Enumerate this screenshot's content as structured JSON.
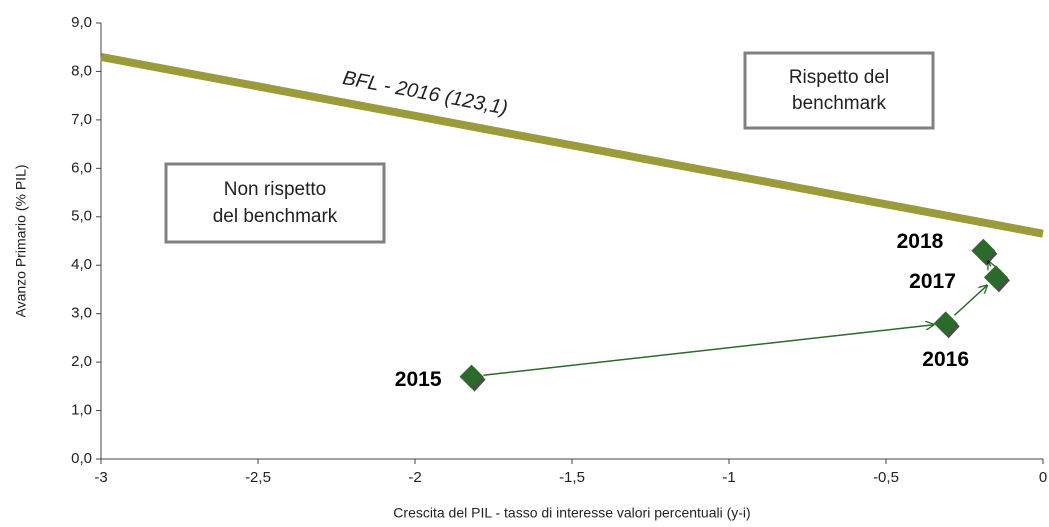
{
  "chart_data": {
    "type": "scatter",
    "xlabel": "Crescita del PIL - tasso di interesse valori percentuali (y-i)",
    "ylabel": "Avanzo Primario (% PIL)",
    "xlim": [
      -3,
      0
    ],
    "ylim": [
      0,
      9
    ],
    "xticks": [
      -3,
      {
        "value": -2.5,
        "label": "-2,5"
      },
      -2,
      {
        "value": -1.5,
        "label": "-1,5"
      },
      -1,
      {
        "value": -0.5,
        "label": "-0,5"
      },
      0
    ],
    "yticks": [
      {
        "value": 0,
        "label": "0,0"
      },
      {
        "value": 1,
        "label": "1,0"
      },
      {
        "value": 2,
        "label": "2,0"
      },
      {
        "value": 3,
        "label": "3,0"
      },
      {
        "value": 4,
        "label": "4,0"
      },
      {
        "value": 5,
        "label": "5,0"
      },
      {
        "value": 6,
        "label": "6,0"
      },
      {
        "value": 7,
        "label": "7,0"
      },
      {
        "value": 8,
        "label": "8,0"
      },
      {
        "value": 9,
        "label": "9,0"
      }
    ],
    "line": {
      "x": [
        -3,
        0
      ],
      "y": [
        8.3,
        4.65
      ],
      "color": "#9b9b3c"
    },
    "points": {
      "x": [
        -1.82,
        -0.31,
        -0.15,
        -0.19
      ],
      "y": [
        1.7,
        2.8,
        3.75,
        4.3
      ],
      "labels": [
        "2015",
        "2016",
        "2017",
        "2018"
      ],
      "color": "#2b6a2b"
    },
    "annotations": {
      "line_label": "BFL - 2016 (123,1)",
      "box_right": [
        "Rispetto del",
        "benchmark"
      ],
      "box_left": [
        "Non rispetto",
        "del benchmark"
      ]
    }
  }
}
